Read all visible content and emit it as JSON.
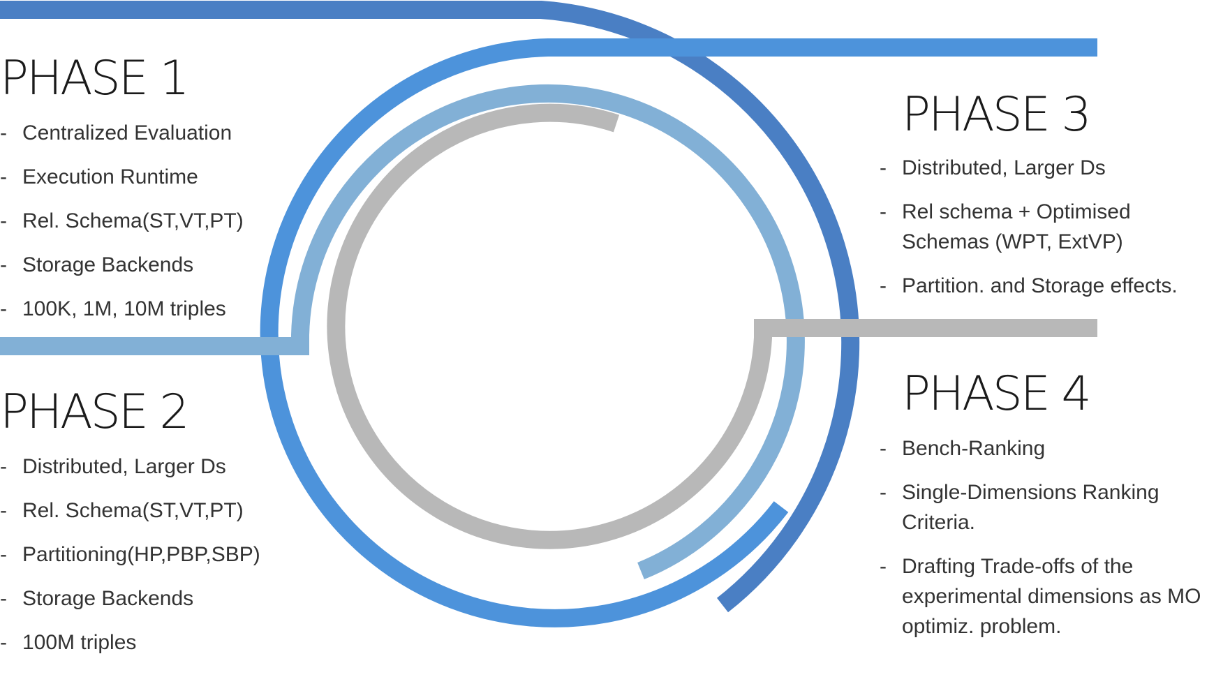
{
  "colors": {
    "dark_blue": "#4a7fc4",
    "mid_blue": "#4d93db",
    "light_blue": "#82b0d6",
    "gray": "#b8b8b8"
  },
  "phases": [
    {
      "title": "PHASE 1",
      "items": [
        "Centralized Evaluation",
        "Execution Runtime",
        "Rel. Schema(ST,VT,PT)",
        "Storage Backends",
        "100K, 1M, 10M triples"
      ]
    },
    {
      "title": "PHASE 2",
      "items": [
        "Distributed, Larger Ds",
        "Rel. Schema(ST,VT,PT)",
        "Partitioning(HP,PBP,SBP)",
        "Storage Backends",
        "100M triples"
      ]
    },
    {
      "title": "PHASE 3",
      "items": [
        "Distributed, Larger Ds",
        "Rel schema + Optimised Schemas (WPT, ExtVP)",
        "Partition. and Storage effects."
      ]
    },
    {
      "title": "PHASE 4",
      "items": [
        "Bench-Ranking",
        "Single-Dimensions Ranking Criteria.",
        "Drafting Trade-offs of the experimental dimensions as MO optimiz. problem."
      ]
    }
  ],
  "dash": "-"
}
